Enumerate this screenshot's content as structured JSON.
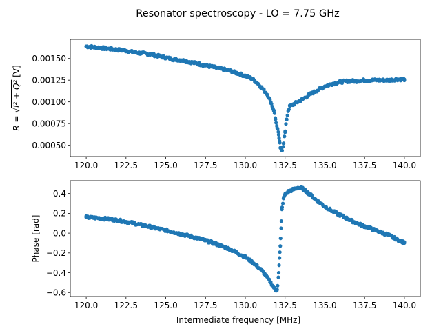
{
  "title": "Resonator spectroscopy - LO = 7.75 GHz",
  "colors": {
    "marker": "#1f77b4",
    "axes": "#000000",
    "background": "#ffffff"
  },
  "chart_data": [
    {
      "type": "scatter",
      "title": "",
      "xlabel": "",
      "ylabel": "R = √(I² + Q²) [V]",
      "ylabel_parts": {
        "lhs": "R",
        "eq": " = ",
        "radicand": "I² + Q²",
        "unit": " [V]"
      },
      "xlim": [
        119.0,
        141.0
      ],
      "ylim": [
        0.00037,
        0.00172
      ],
      "x_ticks": [
        120.0,
        122.5,
        125.0,
        127.5,
        130.0,
        132.5,
        135.0,
        137.5,
        140.0
      ],
      "x_tick_labels": [
        "120.0",
        "122.5",
        "125.0",
        "127.5",
        "130.0",
        "132.5",
        "135.0",
        "137.5",
        "140.0"
      ],
      "y_ticks": [
        0.0005,
        0.00075,
        0.001,
        0.00125,
        0.0015
      ],
      "y_tick_labels": [
        "0.00050",
        "0.00075",
        "0.00100",
        "0.00125",
        "0.00150"
      ],
      "grid": false,
      "series": [
        {
          "x": [
            120.0,
            120.5,
            121.0,
            121.5,
            122.0,
            122.5,
            123.0,
            123.5,
            124.0,
            124.5,
            125.0,
            125.5,
            126.0,
            126.5,
            127.0,
            127.5,
            128.0,
            128.5,
            129.0,
            129.5,
            130.0,
            130.4,
            130.8,
            131.1,
            131.4,
            131.6,
            131.8,
            131.9,
            132.0,
            132.1,
            132.15,
            132.2,
            132.3,
            132.4,
            132.5,
            132.6,
            132.7,
            132.8,
            133.0,
            133.3,
            133.6,
            134.0,
            134.5,
            135.0,
            135.5,
            136.0,
            136.5,
            137.0,
            137.5,
            138.0,
            138.5,
            139.0,
            139.5,
            140.0
          ],
          "y": [
            0.00164,
            0.00163,
            0.00162,
            0.00161,
            0.0016,
            0.00159,
            0.00157,
            0.00156,
            0.00155,
            0.00153,
            0.00151,
            0.00149,
            0.00148,
            0.00146,
            0.00144,
            0.00142,
            0.0014,
            0.00138,
            0.00136,
            0.00133,
            0.0013,
            0.00127,
            0.00121,
            0.00115,
            0.00108,
            0.001,
            0.0009,
            0.0008,
            0.0007,
            0.00062,
            0.00055,
            0.00047,
            0.00044,
            0.00052,
            0.00065,
            0.0008,
            0.0009,
            0.00095,
            0.00097,
            0.001,
            0.00103,
            0.00108,
            0.00113,
            0.00118,
            0.00121,
            0.00123,
            0.00124,
            0.00124,
            0.00125,
            0.00125,
            0.00125,
            0.00125,
            0.00126,
            0.00126
          ]
        }
      ]
    },
    {
      "type": "scatter",
      "title": "",
      "xlabel": "Intermediate frequency [MHz]",
      "ylabel": "Phase [rad]",
      "xlim": [
        119.0,
        141.0
      ],
      "ylim": [
        -0.64,
        0.53
      ],
      "x_ticks": [
        120.0,
        122.5,
        125.0,
        127.5,
        130.0,
        132.5,
        135.0,
        137.5,
        140.0
      ],
      "x_tick_labels": [
        "120.0",
        "122.5",
        "125.0",
        "127.5",
        "130.0",
        "132.5",
        "135.0",
        "137.5",
        "140.0"
      ],
      "y_ticks": [
        -0.6,
        -0.4,
        -0.2,
        0.0,
        0.2,
        0.4
      ],
      "y_tick_labels": [
        "−0.6",
        "−0.4",
        "−0.2",
        "0.0",
        "0.2",
        "0.4"
      ],
      "grid": false,
      "series": [
        {
          "x": [
            120.0,
            120.5,
            121.0,
            121.5,
            122.0,
            122.5,
            123.0,
            123.5,
            124.0,
            124.5,
            125.0,
            125.5,
            126.0,
            126.5,
            127.0,
            127.5,
            128.0,
            128.5,
            129.0,
            129.5,
            130.0,
            130.5,
            131.0,
            131.3,
            131.6,
            131.8,
            131.9,
            132.0,
            132.1,
            132.15,
            132.2,
            132.25,
            132.3,
            132.4,
            132.5,
            132.7,
            133.0,
            133.3,
            133.6,
            134.0,
            134.5,
            135.0,
            135.5,
            136.0,
            136.5,
            137.0,
            137.5,
            138.0,
            138.5,
            139.0,
            139.5,
            140.0
          ],
          "y": [
            0.16,
            0.155,
            0.15,
            0.14,
            0.13,
            0.115,
            0.1,
            0.08,
            0.065,
            0.045,
            0.03,
            0.01,
            -0.01,
            -0.03,
            -0.05,
            -0.075,
            -0.1,
            -0.13,
            -0.16,
            -0.2,
            -0.24,
            -0.3,
            -0.37,
            -0.43,
            -0.5,
            -0.55,
            -0.58,
            -0.57,
            -0.4,
            -0.25,
            -0.13,
            0.05,
            0.24,
            0.35,
            0.39,
            0.42,
            0.44,
            0.46,
            0.45,
            0.4,
            0.33,
            0.27,
            0.22,
            0.18,
            0.14,
            0.1,
            0.07,
            0.04,
            0.01,
            -0.02,
            -0.06,
            -0.1
          ]
        }
      ]
    }
  ]
}
